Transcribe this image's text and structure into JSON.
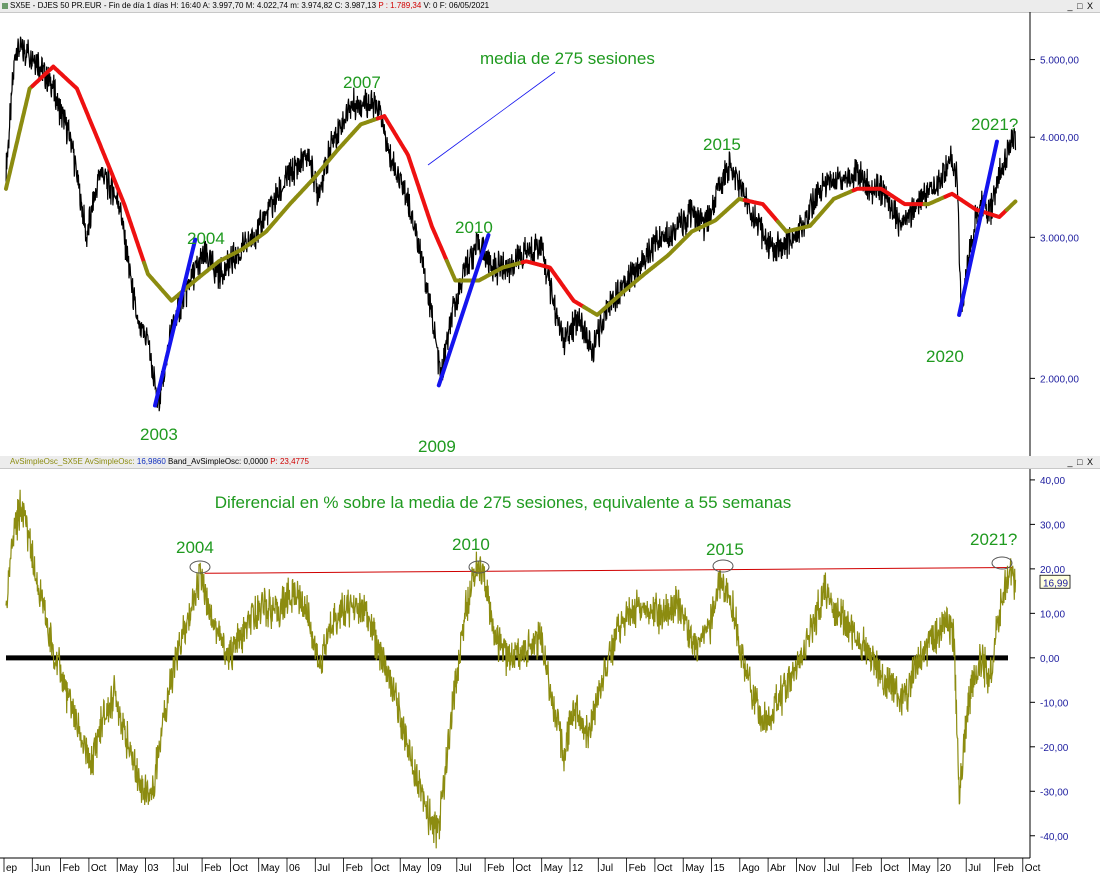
{
  "top_header": {
    "symbol": "SX5E - DJES 50 PR.EUR",
    "meta": "- Fin de día 1 días",
    "h": "H: 16:40",
    "a": "A: 3.997,70",
    "m": "M: 4.022,74",
    "mn": "m: 3.974,82",
    "c": "C: 3.987,13",
    "p": "P : 1.789,34",
    "v": "V: 0",
    "f": "F: 06/05/2021",
    "win_buttons": "_ □ X"
  },
  "bottom_header": {
    "name": "AvSimpleOsc_SX5E",
    "osc": "AvSimpleOsc:",
    "osc_val": "16,9860",
    "band": "Band_AvSimpleOsc: 0,0000",
    "p": "P: 23,4775",
    "win_buttons": "_ □ X"
  },
  "colors": {
    "price": "#000000",
    "ma_falling": "#ee1111",
    "ma_rising": "#8c8c10",
    "trend": "#1414ee",
    "osc": "#8c8c10",
    "annotation": "#1f9a1f",
    "resistance": "#d00000"
  },
  "chart_data": [
    {
      "type": "line",
      "name_panel": "price",
      "annotations": {
        "ma_label": "media de 275 sesiones",
        "years": [
          {
            "label": "2003",
            "x": 2003.1
          },
          {
            "label": "2004",
            "x": 2004.0
          },
          {
            "label": "2007",
            "x": 2007.3
          },
          {
            "label": "2009",
            "x": 2009.1
          },
          {
            "label": "2010",
            "x": 2010.2
          },
          {
            "label": "2015",
            "x": 2015.1
          },
          {
            "label": "2020",
            "x": 2020.15
          },
          {
            "label": "2021?",
            "x": 2021.3
          }
        ]
      },
      "y_scale": "log",
      "ylim": [
        1600,
        5700
      ],
      "yticks": [
        "2.000,00",
        "3.000,00",
        "4.000,00",
        "5.000,00"
      ],
      "ytick_values": [
        2000,
        3000,
        4000,
        5000
      ],
      "price_anchors": [
        [
          2000.0,
          3600
        ],
        [
          2000.2,
          5200
        ],
        [
          2000.6,
          5050
        ],
        [
          2001.0,
          4600
        ],
        [
          2001.4,
          3900
        ],
        [
          2001.7,
          3000
        ],
        [
          2002.0,
          3650
        ],
        [
          2002.4,
          3300
        ],
        [
          2002.8,
          2300
        ],
        [
          2003.0,
          2250
        ],
        [
          2003.2,
          1850
        ],
        [
          2003.5,
          2300
        ],
        [
          2003.9,
          2650
        ],
        [
          2004.2,
          2850
        ],
        [
          2004.5,
          2700
        ],
        [
          2004.9,
          2850
        ],
        [
          2005.3,
          3050
        ],
        [
          2005.7,
          3350
        ],
        [
          2006.0,
          3600
        ],
        [
          2006.4,
          3800
        ],
        [
          2006.6,
          3400
        ],
        [
          2006.9,
          3950
        ],
        [
          2007.3,
          4400
        ],
        [
          2007.6,
          4450
        ],
        [
          2007.9,
          4300
        ],
        [
          2008.1,
          3800
        ],
        [
          2008.5,
          3350
        ],
        [
          2008.8,
          2800
        ],
        [
          2009.0,
          2400
        ],
        [
          2009.2,
          2000
        ],
        [
          2009.4,
          2350
        ],
        [
          2009.7,
          2750
        ],
        [
          2010.0,
          2950
        ],
        [
          2010.3,
          2750
        ],
        [
          2010.6,
          2750
        ],
        [
          2010.9,
          2850
        ],
        [
          2011.3,
          2950
        ],
        [
          2011.6,
          2450
        ],
        [
          2011.8,
          2200
        ],
        [
          2012.1,
          2400
        ],
        [
          2012.4,
          2150
        ],
        [
          2012.7,
          2450
        ],
        [
          2013.1,
          2650
        ],
        [
          2013.4,
          2750
        ],
        [
          2013.8,
          3000
        ],
        [
          2014.2,
          3100
        ],
        [
          2014.5,
          3200
        ],
        [
          2014.8,
          3100
        ],
        [
          2015.1,
          3500
        ],
        [
          2015.3,
          3700
        ],
        [
          2015.6,
          3400
        ],
        [
          2015.8,
          3200
        ],
        [
          2016.1,
          2950
        ],
        [
          2016.4,
          2900
        ],
        [
          2016.7,
          3000
        ],
        [
          2017.0,
          3250
        ],
        [
          2017.3,
          3500
        ],
        [
          2017.7,
          3550
        ],
        [
          2018.0,
          3600
        ],
        [
          2018.3,
          3450
        ],
        [
          2018.6,
          3400
        ],
        [
          2018.9,
          3100
        ],
        [
          2019.1,
          3200
        ],
        [
          2019.4,
          3400
        ],
        [
          2019.7,
          3500
        ],
        [
          2020.0,
          3750
        ],
        [
          2020.1,
          3600
        ],
        [
          2020.2,
          2400
        ],
        [
          2020.4,
          3000
        ],
        [
          2020.6,
          3300
        ],
        [
          2020.8,
          3200
        ],
        [
          2021.0,
          3600
        ],
        [
          2021.2,
          3850
        ],
        [
          2021.35,
          3987
        ]
      ],
      "ma_anchors": [
        [
          2000.0,
          3450
        ],
        [
          2000.5,
          4600
        ],
        [
          2001.0,
          4900
        ],
        [
          2001.5,
          4600
        ],
        [
          2002.0,
          3900
        ],
        [
          2002.5,
          3300
        ],
        [
          2003.0,
          2700
        ],
        [
          2003.5,
          2500
        ],
        [
          2004.0,
          2650
        ],
        [
          2004.5,
          2800
        ],
        [
          2005.0,
          2900
        ],
        [
          2005.5,
          3050
        ],
        [
          2006.0,
          3300
        ],
        [
          2006.5,
          3550
        ],
        [
          2007.0,
          3850
        ],
        [
          2007.5,
          4150
        ],
        [
          2008.0,
          4250
        ],
        [
          2008.5,
          3800
        ],
        [
          2009.0,
          3100
        ],
        [
          2009.5,
          2650
        ],
        [
          2010.0,
          2650
        ],
        [
          2010.5,
          2750
        ],
        [
          2011.0,
          2800
        ],
        [
          2011.5,
          2750
        ],
        [
          2012.0,
          2500
        ],
        [
          2012.5,
          2400
        ],
        [
          2013.0,
          2550
        ],
        [
          2013.5,
          2700
        ],
        [
          2014.0,
          2850
        ],
        [
          2014.5,
          3050
        ],
        [
          2015.0,
          3150
        ],
        [
          2015.5,
          3350
        ],
        [
          2016.0,
          3300
        ],
        [
          2016.5,
          3050
        ],
        [
          2017.0,
          3100
        ],
        [
          2017.5,
          3350
        ],
        [
          2018.0,
          3450
        ],
        [
          2018.5,
          3450
        ],
        [
          2019.0,
          3300
        ],
        [
          2019.5,
          3300
        ],
        [
          2020.0,
          3400
        ],
        [
          2020.5,
          3250
        ],
        [
          2021.0,
          3180
        ],
        [
          2021.35,
          3330
        ]
      ],
      "ma_rising": [
        [
          2000.0,
          2000.55
        ],
        [
          2002.9,
          2007.85
        ],
        [
          2009.3,
          2010.9
        ],
        [
          2012.2,
          2015.6
        ],
        [
          2016.3,
          2017.9
        ],
        [
          2019.4,
          2019.85
        ],
        [
          2021.15,
          2021.35
        ]
      ],
      "trendlines": [
        [
          [
            2003.15,
            1850
          ],
          [
            2004.0,
            2980
          ]
        ],
        [
          [
            2009.15,
            1960
          ],
          [
            2010.2,
            3020
          ]
        ],
        [
          [
            2020.15,
            2400
          ],
          [
            2020.95,
            3950
          ]
        ]
      ]
    },
    {
      "type": "line",
      "name_panel": "oscillator",
      "title": "Diferencial en % sobre la media de 275 sesiones, equivalente a 55 semanas",
      "ylim": [
        -45,
        42
      ],
      "yticks": [
        "-40,00",
        "-30,00",
        "-20,00",
        "-10,00",
        "0,00",
        "10,00",
        "20,00",
        "30,00",
        "40,00"
      ],
      "ytick_values": [
        -40,
        -30,
        -20,
        -10,
        0,
        10,
        20,
        30,
        40
      ],
      "last_value_label": "16,99",
      "last_value": 16.99,
      "annotations": [
        {
          "label": "2004",
          "x": 2004.1
        },
        {
          "label": "2010",
          "x": 2010.0
        },
        {
          "label": "2015",
          "x": 2015.1
        },
        {
          "label": "2021?",
          "x": 2021.2
        }
      ],
      "resistance_line": [
        [
          2004.2,
          19.0
        ],
        [
          2021.3,
          20.3
        ]
      ],
      "zero_line": 0,
      "osc_anchors": [
        [
          2000.0,
          10
        ],
        [
          2000.15,
          28
        ],
        [
          2000.35,
          35
        ],
        [
          2000.6,
          20
        ],
        [
          2000.9,
          5
        ],
        [
          2001.2,
          -5
        ],
        [
          2001.5,
          -15
        ],
        [
          2001.8,
          -25
        ],
        [
          2002.0,
          -15
        ],
        [
          2002.3,
          -8
        ],
        [
          2002.6,
          -20
        ],
        [
          2002.9,
          -30
        ],
        [
          2003.1,
          -30
        ],
        [
          2003.3,
          -15
        ],
        [
          2003.6,
          0
        ],
        [
          2003.9,
          10
        ],
        [
          2004.1,
          19
        ],
        [
          2004.4,
          8
        ],
        [
          2004.7,
          0
        ],
        [
          2005.0,
          5
        ],
        [
          2005.4,
          12
        ],
        [
          2005.7,
          10
        ],
        [
          2006.1,
          15
        ],
        [
          2006.4,
          10
        ],
        [
          2006.6,
          -2
        ],
        [
          2006.9,
          8
        ],
        [
          2007.3,
          12
        ],
        [
          2007.6,
          10
        ],
        [
          2007.9,
          2
        ],
        [
          2008.2,
          -8
        ],
        [
          2008.5,
          -20
        ],
        [
          2008.8,
          -30
        ],
        [
          2009.0,
          -38
        ],
        [
          2009.15,
          -38
        ],
        [
          2009.4,
          -15
        ],
        [
          2009.7,
          10
        ],
        [
          2009.9,
          20
        ],
        [
          2010.1,
          19
        ],
        [
          2010.3,
          5
        ],
        [
          2010.6,
          0
        ],
        [
          2011.0,
          2
        ],
        [
          2011.3,
          5
        ],
        [
          2011.6,
          -12
        ],
        [
          2011.8,
          -22
        ],
        [
          2012.0,
          -10
        ],
        [
          2012.3,
          -18
        ],
        [
          2012.6,
          -5
        ],
        [
          2013.0,
          8
        ],
        [
          2013.4,
          12
        ],
        [
          2013.8,
          10
        ],
        [
          2014.2,
          12
        ],
        [
          2014.6,
          2
        ],
        [
          2014.9,
          8
        ],
        [
          2015.1,
          18
        ],
        [
          2015.4,
          10
        ],
        [
          2015.6,
          -2
        ],
        [
          2016.0,
          -15
        ],
        [
          2016.3,
          -10
        ],
        [
          2016.6,
          -5
        ],
        [
          2017.0,
          5
        ],
        [
          2017.3,
          15
        ],
        [
          2017.6,
          10
        ],
        [
          2018.0,
          5
        ],
        [
          2018.3,
          0
        ],
        [
          2018.6,
          -5
        ],
        [
          2019.0,
          -10
        ],
        [
          2019.3,
          0
        ],
        [
          2019.7,
          5
        ],
        [
          2019.9,
          10
        ],
        [
          2020.05,
          3
        ],
        [
          2020.15,
          -30
        ],
        [
          2020.35,
          -10
        ],
        [
          2020.6,
          0
        ],
        [
          2020.8,
          -5
        ],
        [
          2021.0,
          10
        ],
        [
          2021.2,
          20
        ],
        [
          2021.35,
          17
        ]
      ]
    }
  ],
  "x_axis": {
    "labels": [
      "ep",
      "Jun",
      "Feb",
      "Oct",
      "May",
      "03",
      "Jul",
      "Feb",
      "Oct",
      "May",
      "06",
      "Jul",
      "Feb",
      "Oct",
      "May",
      "09",
      "Jul",
      "Feb",
      "Oct",
      "May",
      "12",
      "Jul",
      "Feb",
      "Oct",
      "May",
      "15",
      "Ago",
      "Abr",
      "Nov",
      "Jul",
      "Feb",
      "Oct",
      "May",
      "20",
      "Jul",
      "Feb",
      "Oct"
    ]
  }
}
